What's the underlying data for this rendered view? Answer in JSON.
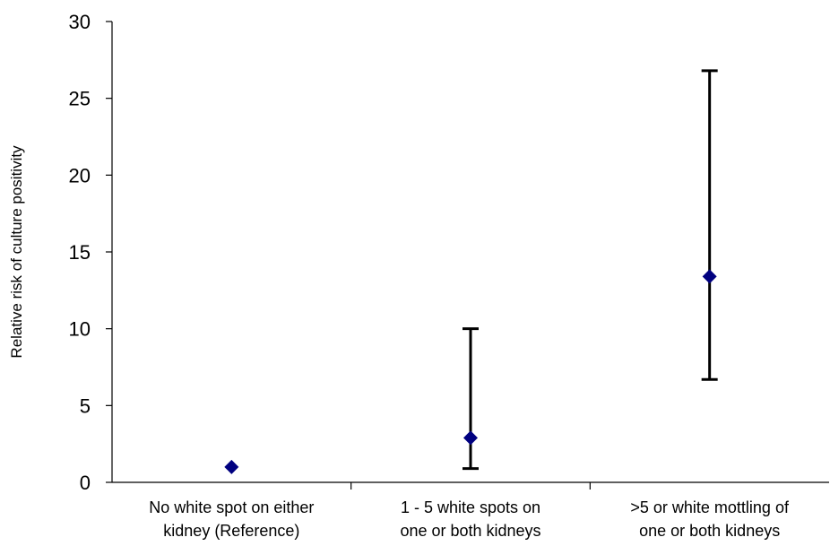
{
  "chart_data": {
    "type": "scatter",
    "ylabel": "Relative risk of culture positivity",
    "xlabel": "",
    "ylim": [
      0,
      30
    ],
    "yticks": [
      0,
      5,
      10,
      15,
      20,
      25,
      30
    ],
    "grid": false,
    "categories": [
      [
        "No white spot on either",
        "kidney (Reference)"
      ],
      [
        "1 - 5 white spots on",
        "one or both kidneys"
      ],
      [
        ">5 or white mottling of",
        "one or both kidneys"
      ]
    ],
    "points": [
      {
        "y": 1.0,
        "lower": null,
        "upper": null
      },
      {
        "y": 2.9,
        "lower": 0.9,
        "upper": 10.0
      },
      {
        "y": 13.4,
        "lower": 6.7,
        "upper": 26.8
      }
    ],
    "marker_color": "#000080",
    "errorbar_color": "#000000"
  }
}
